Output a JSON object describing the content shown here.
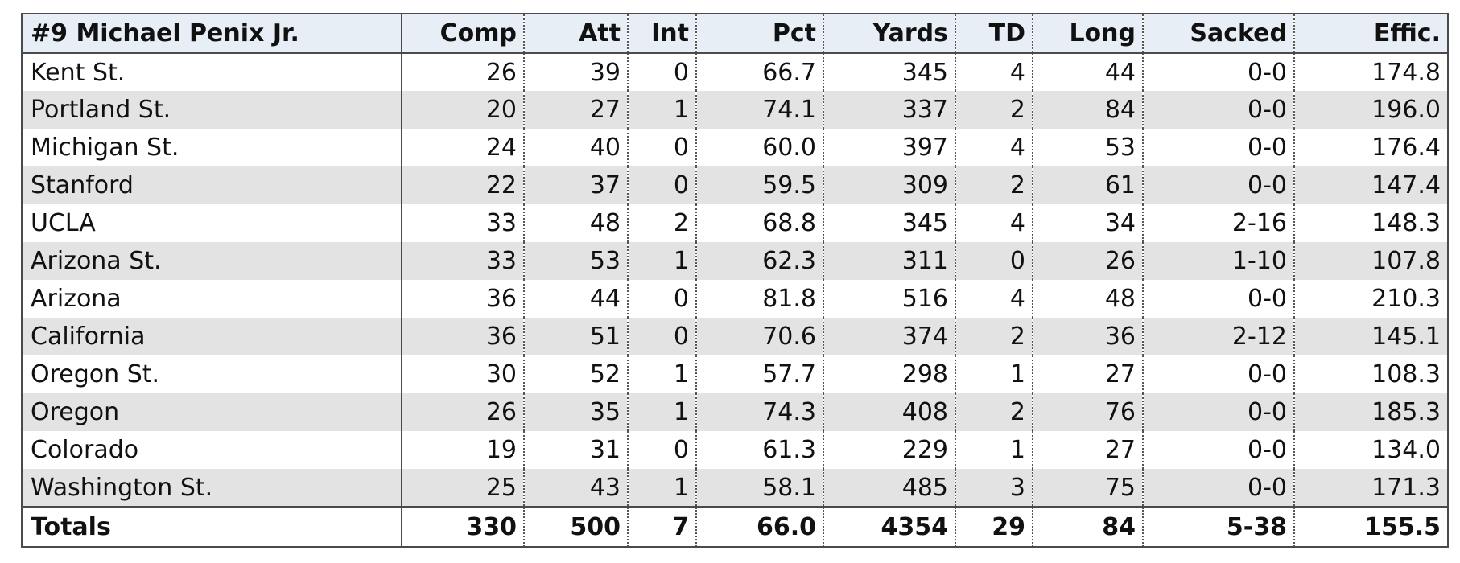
{
  "table": {
    "header": [
      "#9 Michael Penix Jr.",
      "Comp",
      "Att",
      "Int",
      "Pct",
      "Yards",
      "TD",
      "Long",
      "Sacked",
      "Effic."
    ],
    "rows": [
      [
        "Kent St.",
        "26",
        "39",
        "0",
        "66.7",
        "345",
        "4",
        "44",
        "0-0",
        "174.8"
      ],
      [
        "Portland St.",
        "20",
        "27",
        "1",
        "74.1",
        "337",
        "2",
        "84",
        "0-0",
        "196.0"
      ],
      [
        "Michigan St.",
        "24",
        "40",
        "0",
        "60.0",
        "397",
        "4",
        "53",
        "0-0",
        "176.4"
      ],
      [
        "Stanford",
        "22",
        "37",
        "0",
        "59.5",
        "309",
        "2",
        "61",
        "0-0",
        "147.4"
      ],
      [
        "UCLA",
        "33",
        "48",
        "2",
        "68.8",
        "345",
        "4",
        "34",
        "2-16",
        "148.3"
      ],
      [
        "Arizona St.",
        "33",
        "53",
        "1",
        "62.3",
        "311",
        "0",
        "26",
        "1-10",
        "107.8"
      ],
      [
        "Arizona",
        "36",
        "44",
        "0",
        "81.8",
        "516",
        "4",
        "48",
        "0-0",
        "210.3"
      ],
      [
        "California",
        "36",
        "51",
        "0",
        "70.6",
        "374",
        "2",
        "36",
        "2-12",
        "145.1"
      ],
      [
        "Oregon St.",
        "30",
        "52",
        "1",
        "57.7",
        "298",
        "1",
        "27",
        "0-0",
        "108.3"
      ],
      [
        "Oregon",
        "26",
        "35",
        "1",
        "74.3",
        "408",
        "2",
        "76",
        "0-0",
        "185.3"
      ],
      [
        "Colorado",
        "19",
        "31",
        "0",
        "61.3",
        "229",
        "1",
        "27",
        "0-0",
        "134.0"
      ],
      [
        "Washington St.",
        "25",
        "43",
        "1",
        "58.1",
        "485",
        "3",
        "75",
        "0-0",
        "171.3"
      ]
    ],
    "totals": [
      "Totals",
      "330",
      "500",
      "7",
      "66.0",
      "4354",
      "29",
      "84",
      "5-38",
      "155.5"
    ]
  }
}
